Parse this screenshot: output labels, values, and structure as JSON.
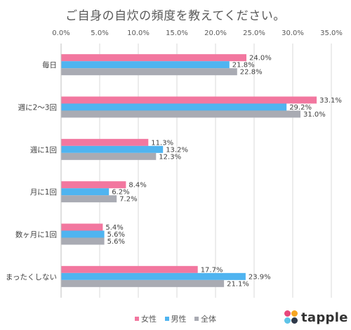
{
  "chart_data": {
    "type": "bar",
    "orientation": "horizontal",
    "title": "ご自身の自炊の頻度を教えてください。",
    "categories": [
      "毎日",
      "週に2～3回",
      "週に1回",
      "月に1回",
      "数ヶ月に1回",
      "まったくしない"
    ],
    "series": [
      {
        "name": "女性",
        "color": "#f2779f",
        "values": [
          24.0,
          33.1,
          11.3,
          8.4,
          5.4,
          17.7
        ],
        "labels": [
          "24.0%",
          "33.1%",
          "11.3%",
          "8.4%",
          "5.4%",
          "17.7%"
        ]
      },
      {
        "name": "男性",
        "color": "#4fb4f0",
        "values": [
          21.8,
          29.2,
          13.2,
          6.2,
          5.6,
          23.9
        ],
        "labels": [
          "21.8%",
          "29.2%",
          "13.2%",
          "6.2%",
          "5.6%",
          "23.9%"
        ]
      },
      {
        "name": "全体",
        "color": "#a9abb3",
        "values": [
          22.8,
          31.0,
          12.3,
          7.2,
          5.6,
          21.1
        ],
        "labels": [
          "22.8%",
          "31.0%",
          "12.3%",
          "7.2%",
          "5.6%",
          "21.1%"
        ]
      }
    ],
    "xlim": [
      0,
      35
    ],
    "xticks": [
      "0.0%",
      "5.0%",
      "10.0%",
      "15.0%",
      "20.0%",
      "25.0%",
      "30.0%",
      "35.0%"
    ],
    "grid": true,
    "legend_position": "bottom"
  },
  "brand": {
    "name": "tapple",
    "colors": [
      "#e8487c",
      "#f6a623",
      "#5ec4e8",
      "#2f3a4a"
    ]
  }
}
